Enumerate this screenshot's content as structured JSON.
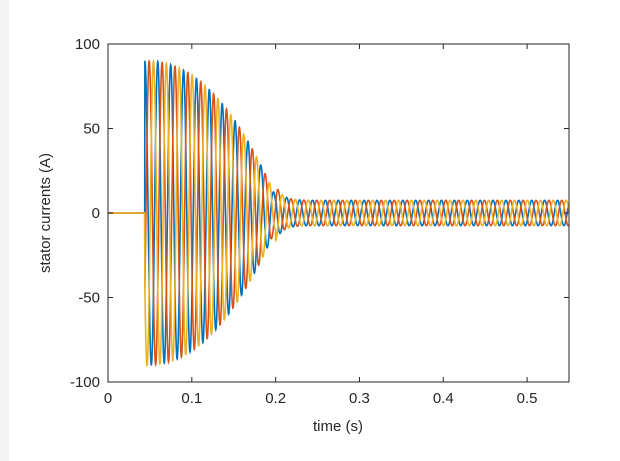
{
  "chart_data": {
    "type": "line",
    "title": "",
    "xlabel": "time (s)",
    "ylabel": "stator currents (A)",
    "xlim": [
      0,
      0.55
    ],
    "ylim": [
      -100,
      100
    ],
    "xticks": [
      0,
      0.1,
      0.2,
      0.3,
      0.4,
      0.5
    ],
    "xtick_labels": [
      "0",
      "0.1",
      "0.2",
      "0.3",
      "0.4",
      "0.5"
    ],
    "yticks": [
      100,
      50,
      0,
      -50,
      -100
    ],
    "ytick_labels": [
      "100",
      "50",
      "0",
      "-50",
      "-100"
    ],
    "grid": false,
    "legend": "none",
    "waveform": {
      "switch_on_time": 0.044,
      "transient_peak": 90,
      "steady_amplitude": 7.5,
      "transient_decay_time": 0.2,
      "frequency_hz": 65,
      "phase_shift_deg": 120
    },
    "series": [
      {
        "color": "#0072BD",
        "phase_deg": 0
      },
      {
        "color": "#D95319",
        "phase_deg": -120
      },
      {
        "color": "#EDB120",
        "phase_deg": 120
      }
    ]
  }
}
